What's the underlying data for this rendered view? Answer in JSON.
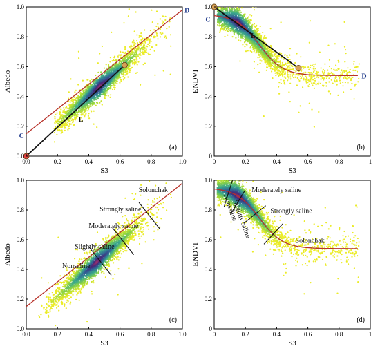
{
  "figure": {
    "description_free": true
  },
  "colors": {
    "curve": "#b8322a",
    "line": "#111111",
    "label_blue": "#1f3a8a",
    "point_fill": "#d8a055",
    "point_origin": "#e04040",
    "axis": "#000000"
  },
  "chart_data": [
    {
      "id": "a",
      "type": "scatter",
      "panel_label": "(a)",
      "xlabel": "S3",
      "ylabel": "Albedo",
      "xlim": [
        0,
        1
      ],
      "ylim": [
        0,
        1
      ],
      "x_ticks": [
        "0.0",
        "0.2",
        "0.4",
        "0.6",
        "0.8",
        "1.0"
      ],
      "y_ticks": [
        "0.0",
        "0.2",
        "0.4",
        "0.6",
        "0.8",
        "1.0"
      ],
      "density": {
        "shape": "linear",
        "x_range": [
          0.18,
          0.93
        ],
        "slope": 0.93,
        "intercept": 0.03,
        "spread": 0.04,
        "peak_x": 0.47
      },
      "curve": {
        "kind": "linear",
        "points": [
          [
            0,
            0.15
          ],
          [
            1,
            0.98
          ]
        ]
      },
      "line": {
        "label": "L",
        "from": [
          0,
          0
        ],
        "to": [
          0.63,
          0.61
        ]
      },
      "endpoints": [
        [
          0,
          0
        ],
        [
          0.63,
          0.61
        ]
      ],
      "point_labels": [
        {
          "text": "C",
          "x": -0.03,
          "y": 0.14
        },
        {
          "text": "D",
          "x": 1.03,
          "y": 0.98
        },
        {
          "text": "L",
          "x": 0.35,
          "y": 0.25
        }
      ]
    },
    {
      "id": "b",
      "type": "scatter",
      "panel_label": "(b)",
      "xlabel": "S3",
      "ylabel": "ENDVI",
      "xlim": [
        0,
        1
      ],
      "ylim": [
        0,
        1
      ],
      "x_ticks": [
        "0",
        "0.2",
        "0.4",
        "0.6",
        "0.8",
        "1"
      ],
      "y_ticks": [
        "0",
        "0.2",
        "0.4",
        "0.6",
        "0.8",
        "1.0"
      ],
      "density": {
        "shape": "sigmoid",
        "x_range": [
          0.02,
          0.93
        ],
        "spread": 0.04,
        "peak_x": 0.15
      },
      "curve": {
        "kind": "sigmoid",
        "x_range": [
          0,
          0.92
        ]
      },
      "line": {
        "label": "L",
        "from": [
          0,
          1.0
        ],
        "to": [
          0.54,
          0.59
        ]
      },
      "endpoints": [
        [
          0,
          1.0
        ],
        [
          0.54,
          0.59
        ]
      ],
      "point_labels": [
        {
          "text": "C",
          "x": -0.04,
          "y": 0.92
        },
        {
          "text": "D",
          "x": 0.96,
          "y": 0.54
        },
        {
          "text": "L",
          "x": 0.25,
          "y": 0.81
        }
      ]
    },
    {
      "id": "c",
      "type": "scatter",
      "panel_label": "(c)",
      "xlabel": "S3",
      "ylabel": "Albedo",
      "xlim": [
        0,
        1
      ],
      "ylim": [
        0,
        1
      ],
      "x_ticks": [
        "0.0",
        "0.2",
        "0.4",
        "0.6",
        "0.8",
        "1.0"
      ],
      "y_ticks": [
        "0.0",
        "0.2",
        "0.4",
        "0.6",
        "0.8",
        "1.0"
      ],
      "density": {
        "shape": "linear",
        "x_range": [
          0.08,
          0.93
        ],
        "slope": 0.93,
        "intercept": 0.03,
        "spread": 0.04,
        "peak_x": 0.45
      },
      "curve": {
        "kind": "linear",
        "points": [
          [
            0,
            0.15
          ],
          [
            1,
            0.98
          ]
        ]
      },
      "class_boundaries": [
        {
          "center": [
            0.47,
            0.46
          ],
          "half_len": 0.12
        },
        {
          "center": [
            0.62,
            0.59
          ],
          "half_len": 0.11
        },
        {
          "center": [
            0.79,
            0.76
          ],
          "half_len": 0.11
        }
      ],
      "class_labels": [
        {
          "text": "Nonsaline",
          "x": 0.23,
          "y": 0.41
        },
        {
          "text": "Slightly saline",
          "x": 0.31,
          "y": 0.54
        },
        {
          "text": "Moderately saline",
          "x": 0.4,
          "y": 0.68
        },
        {
          "text": "Strongly saline",
          "x": 0.47,
          "y": 0.79
        },
        {
          "text": "Solonchak",
          "x": 0.72,
          "y": 0.92
        }
      ]
    },
    {
      "id": "d",
      "type": "scatter",
      "panel_label": "(d)",
      "xlabel": "S3",
      "ylabel": "ENDVI",
      "xlim": [
        0,
        1
      ],
      "ylim": [
        0,
        1
      ],
      "x_ticks": [
        "0",
        "0.2",
        "0.4",
        "0.6",
        "0.8",
        "1"
      ],
      "y_ticks": [
        "0",
        "0.2",
        "0.4",
        "0.6",
        "0.8",
        "1.0"
      ],
      "density": {
        "shape": "sigmoid",
        "x_range": [
          0.02,
          0.93
        ],
        "spread": 0.04,
        "peak_x": 0.15
      },
      "curve": {
        "kind": "sigmoid",
        "x_range": [
          0,
          0.92
        ]
      },
      "class_boundaries": [
        {
          "center": [
            0.09,
            0.91
          ],
          "half_len": 0.09
        },
        {
          "center": [
            0.15,
            0.85
          ],
          "half_len": 0.09
        },
        {
          "center": [
            0.26,
            0.77
          ],
          "half_len": 0.09
        },
        {
          "center": [
            0.38,
            0.64
          ],
          "half_len": 0.09
        }
      ],
      "class_labels": [
        {
          "text": "Nonsaline",
          "x": 0.06,
          "y": 0.9,
          "rotate": true
        },
        {
          "text": "Slightly saline",
          "x": 0.12,
          "y": 0.86,
          "rotate": true
        },
        {
          "text": "Moderately saline",
          "x": 0.24,
          "y": 0.92
        },
        {
          "text": "Strongly saline",
          "x": 0.36,
          "y": 0.78
        },
        {
          "text": "Solonchak",
          "x": 0.52,
          "y": 0.58
        }
      ]
    }
  ]
}
